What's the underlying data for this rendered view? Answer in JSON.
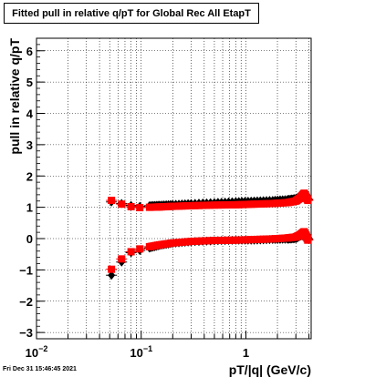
{
  "title": "Fitted pull in relative q/pT for Global Rec All EtapT",
  "footer": "Fri Dec 31 15:46:45 2021",
  "chart_data": {
    "type": "scatter",
    "title": "Fitted pull in relative q/pT for Global Rec All EtapT",
    "xlabel": "pT/|q| (GeV/c)",
    "ylabel": "pull in relative q/pT",
    "xscale": "log",
    "xlim": [
      0.01,
      4.2
    ],
    "ylim": [
      -3.2,
      6.4
    ],
    "x_ticks": [
      {
        "value": 0.01,
        "base": "10",
        "exp": "-2"
      },
      {
        "value": 0.1,
        "base": "10",
        "exp": "-1"
      },
      {
        "value": 1,
        "base": "1",
        "exp": ""
      }
    ],
    "y_ticks": [
      "-3",
      "-2",
      "-1",
      "0",
      "1",
      "2",
      "3",
      "4",
      "5",
      "6"
    ],
    "grid": true,
    "series": [
      {
        "color": "#000000",
        "marker": "diamond",
        "x": [
          0.052,
          0.065,
          0.08,
          0.097,
          0.12,
          0.15,
          0.2,
          0.3,
          0.5,
          0.8,
          1.2,
          1.8,
          2.5,
          3.0,
          3.3,
          3.6,
          3.9
        ],
        "y": [
          1.17,
          1.12,
          1.06,
          1.03,
          1.05,
          1.07,
          1.09,
          1.12,
          1.15,
          1.18,
          1.2,
          1.22,
          1.25,
          1.28,
          1.35,
          1.3,
          1.25
        ],
        "y_low": [
          -1.17,
          -0.75,
          -0.45,
          -0.38,
          -0.3,
          -0.22,
          -0.15,
          -0.1,
          -0.07,
          -0.05,
          -0.05,
          -0.03,
          -0.02,
          0.0,
          0.08,
          0.12,
          -0.02
        ]
      },
      {
        "color": "#ff0000",
        "marker": "square",
        "x": [
          0.052,
          0.065,
          0.08,
          0.097,
          0.12,
          0.15,
          0.2,
          0.3,
          0.5,
          0.8,
          1.2,
          1.8,
          2.5,
          3.0,
          3.3,
          3.6,
          3.9
        ],
        "y": [
          1.22,
          1.1,
          1.02,
          0.99,
          1.0,
          1.01,
          1.03,
          1.05,
          1.07,
          1.08,
          1.1,
          1.12,
          1.15,
          1.2,
          1.3,
          1.45,
          1.22
        ],
        "y_low": [
          -0.98,
          -0.65,
          -0.42,
          -0.33,
          -0.26,
          -0.2,
          -0.14,
          -0.09,
          -0.06,
          -0.05,
          -0.03,
          -0.01,
          0.02,
          0.05,
          0.12,
          0.22,
          -0.05
        ]
      }
    ]
  }
}
